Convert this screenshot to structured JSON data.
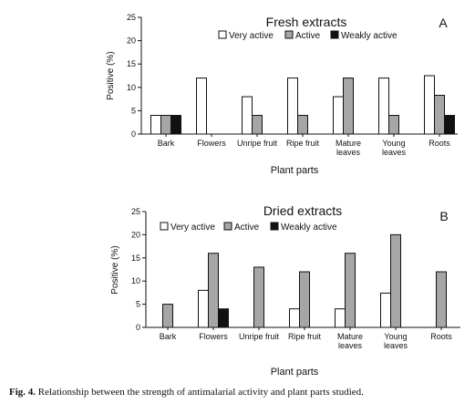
{
  "chart_data": [
    {
      "type": "bar",
      "title": "Fresh extracts",
      "panel_label": "A",
      "xlabel": "Plant parts",
      "ylabel": "Positive (%)",
      "ylim": [
        0,
        25
      ],
      "yticks": [
        "0",
        "5",
        "10",
        "15",
        "20",
        "25"
      ],
      "categories": [
        "Bark",
        "Flowers",
        "Unripe fruit",
        "Ripe fruit",
        "Mature\nleaves",
        "Young\nleaves",
        "Roots"
      ],
      "legend_position": "top-right",
      "series": [
        {
          "name": "Very active",
          "color": "#ffffff",
          "values": [
            4,
            12,
            8,
            12,
            8,
            12,
            12.5
          ]
        },
        {
          "name": "Active",
          "color": "#a6a6a6",
          "values": [
            4,
            0,
            4,
            4,
            12,
            4,
            8.3
          ]
        },
        {
          "name": "Weakly active",
          "color": "#111111",
          "values": [
            4,
            0,
            0,
            0,
            0,
            0,
            4
          ]
        }
      ]
    },
    {
      "type": "bar",
      "title": "Dried extracts",
      "panel_label": "B",
      "xlabel": "Plant parts",
      "ylabel": "Positive (%)",
      "ylim": [
        0,
        25
      ],
      "yticks": [
        "0",
        "5",
        "10",
        "15",
        "20",
        "25"
      ],
      "categories": [
        "Bark",
        "Flowers",
        "Unripe fruit",
        "Ripe fruit",
        "Mature\nleaves",
        "Young\nleaves",
        "Roots"
      ],
      "legend_position": "top-left",
      "series": [
        {
          "name": "Very active",
          "color": "#ffffff",
          "values": [
            0,
            8,
            0,
            4,
            4,
            7.4,
            0
          ]
        },
        {
          "name": "Active",
          "color": "#a6a6a6",
          "values": [
            5,
            16,
            13,
            12,
            16,
            20,
            12
          ]
        },
        {
          "name": "Weakly active",
          "color": "#111111",
          "values": [
            0,
            4,
            0,
            0,
            0,
            0,
            0
          ]
        }
      ]
    }
  ],
  "caption": {
    "label": "Fig. 4.",
    "text": " Relationship between the strength of antimalarial activity and plant parts studied."
  }
}
